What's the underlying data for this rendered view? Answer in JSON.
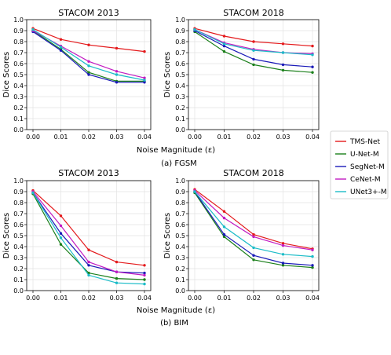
{
  "captions": {
    "top": "(a) FGSM",
    "bottom": "(b) BIM"
  },
  "legend": {
    "items": [
      {
        "name": "TMS-Net",
        "color": "#e41a1c"
      },
      {
        "name": "U-Net-M",
        "color": "#1a7f1a"
      },
      {
        "name": "SegNet-M",
        "color": "#1a1ab8"
      },
      {
        "name": "CeNet-M",
        "color": "#c21bc2"
      },
      {
        "name": "UNet3+-M",
        "color": "#1bbcc8"
      }
    ]
  },
  "chart_data": [
    {
      "type": "line",
      "title": "STACOM 2013",
      "xlabel": "",
      "ylabel": "Dice Scores",
      "x": [
        "0.00",
        "0.01",
        "0.02",
        "0.03",
        "0.04"
      ],
      "ylim": [
        0.0,
        1.0
      ],
      "yticks": [
        "0.0",
        "0.1",
        "0.2",
        "0.3",
        "0.4",
        "0.5",
        "0.6",
        "0.7",
        "0.8",
        "0.9",
        "1.0"
      ],
      "grid": true,
      "series": [
        {
          "name": "TMS-Net",
          "values": [
            0.92,
            0.82,
            0.77,
            0.74,
            0.71
          ]
        },
        {
          "name": "U-Net-M",
          "values": [
            0.9,
            0.73,
            0.52,
            0.44,
            0.44
          ]
        },
        {
          "name": "SegNet-M",
          "values": [
            0.89,
            0.72,
            0.5,
            0.43,
            0.43
          ]
        },
        {
          "name": "CeNet-M",
          "values": [
            0.9,
            0.76,
            0.62,
            0.53,
            0.47
          ]
        },
        {
          "name": "UNet3+-M",
          "values": [
            0.91,
            0.75,
            0.58,
            0.5,
            0.45
          ]
        }
      ]
    },
    {
      "type": "line",
      "title": "STACOM 2018",
      "xlabel": "",
      "ylabel": "Dice Scores",
      "x": [
        "0.00",
        "0.01",
        "0.02",
        "0.03",
        "0.04"
      ],
      "ylim": [
        0.0,
        1.0
      ],
      "yticks": [
        "0.0",
        "0.1",
        "0.2",
        "0.3",
        "0.4",
        "0.5",
        "0.6",
        "0.7",
        "0.8",
        "0.9",
        "1.0"
      ],
      "grid": true,
      "series": [
        {
          "name": "TMS-Net",
          "values": [
            0.92,
            0.85,
            0.8,
            0.78,
            0.76
          ]
        },
        {
          "name": "U-Net-M",
          "values": [
            0.89,
            0.71,
            0.59,
            0.54,
            0.52
          ]
        },
        {
          "name": "SegNet-M",
          "values": [
            0.9,
            0.76,
            0.64,
            0.59,
            0.57
          ]
        },
        {
          "name": "CeNet-M",
          "values": [
            0.91,
            0.79,
            0.73,
            0.7,
            0.69
          ]
        },
        {
          "name": "UNet3+-M",
          "values": [
            0.91,
            0.78,
            0.72,
            0.7,
            0.68
          ]
        }
      ]
    },
    {
      "type": "line",
      "title": "STACOM 2013",
      "xlabel": "",
      "ylabel": "Dice Scores",
      "x": [
        "0.00",
        "0.01",
        "0.02",
        "0.03",
        "0.04"
      ],
      "ylim": [
        0.0,
        1.0
      ],
      "yticks": [
        "0.0",
        "0.1",
        "0.2",
        "0.3",
        "0.4",
        "0.5",
        "0.6",
        "0.7",
        "0.8",
        "0.9",
        "1.0"
      ],
      "grid": true,
      "series": [
        {
          "name": "TMS-Net",
          "values": [
            0.91,
            0.68,
            0.37,
            0.26,
            0.23
          ]
        },
        {
          "name": "U-Net-M",
          "values": [
            0.88,
            0.42,
            0.16,
            0.11,
            0.1
          ]
        },
        {
          "name": "SegNet-M",
          "values": [
            0.89,
            0.52,
            0.23,
            0.17,
            0.16
          ]
        },
        {
          "name": "CeNet-M",
          "values": [
            0.9,
            0.59,
            0.26,
            0.17,
            0.14
          ]
        },
        {
          "name": "UNet3+-M",
          "values": [
            0.89,
            0.48,
            0.14,
            0.07,
            0.06
          ]
        }
      ]
    },
    {
      "type": "line",
      "title": "STACOM 2018",
      "xlabel": "",
      "ylabel": "Dice Scores",
      "x": [
        "0.00",
        "0.01",
        "0.02",
        "0.03",
        "0.04"
      ],
      "ylim": [
        0.0,
        1.0
      ],
      "yticks": [
        "0.0",
        "0.1",
        "0.2",
        "0.3",
        "0.4",
        "0.5",
        "0.6",
        "0.7",
        "0.8",
        "0.9",
        "1.0"
      ],
      "grid": true,
      "series": [
        {
          "name": "TMS-Net",
          "values": [
            0.92,
            0.72,
            0.51,
            0.43,
            0.38
          ]
        },
        {
          "name": "U-Net-M",
          "values": [
            0.89,
            0.49,
            0.28,
            0.23,
            0.21
          ]
        },
        {
          "name": "SegNet-M",
          "values": [
            0.9,
            0.51,
            0.32,
            0.25,
            0.23
          ]
        },
        {
          "name": "CeNet-M",
          "values": [
            0.91,
            0.66,
            0.49,
            0.41,
            0.37
          ]
        },
        {
          "name": "UNet3+-M",
          "values": [
            0.9,
            0.58,
            0.39,
            0.33,
            0.31
          ]
        }
      ]
    }
  ],
  "shared_xlabel": {
    "top": "Noise Magnitude (ε)",
    "bottom": "Noise Magnitude (ε)"
  }
}
